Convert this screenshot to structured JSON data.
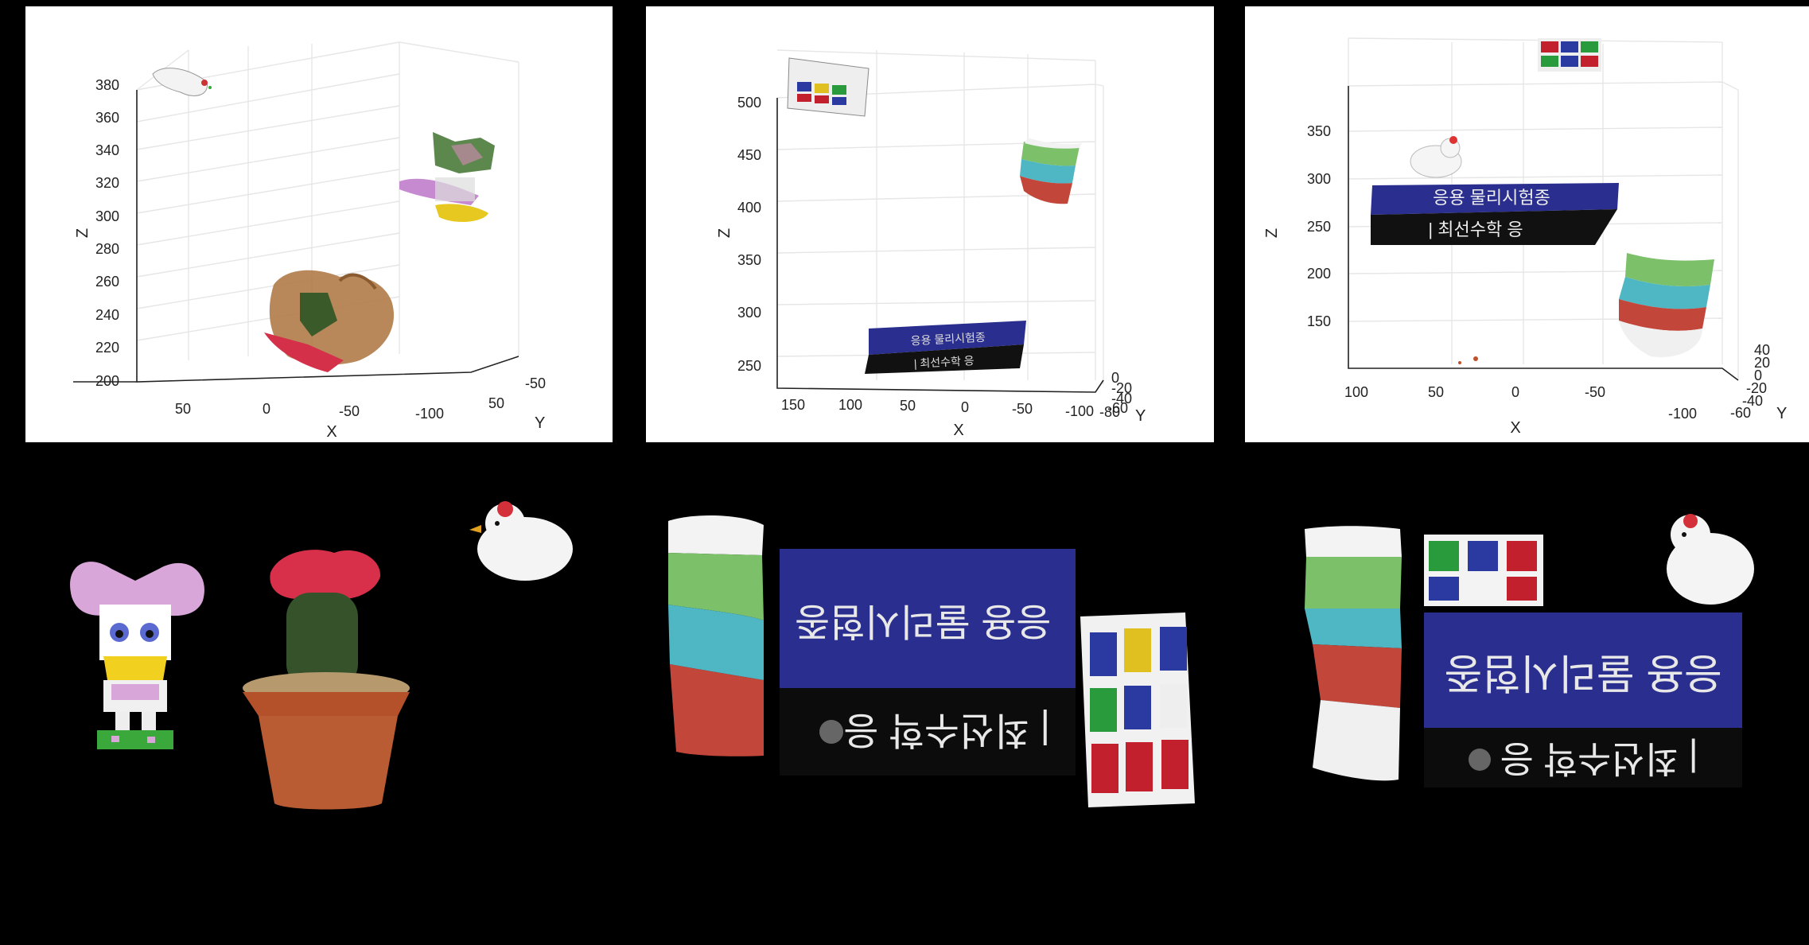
{
  "plots": [
    {
      "id": "a",
      "xlabel": "X",
      "ylabel": "Y",
      "zlabel": "Z",
      "zticks": [
        "380",
        "360",
        "340",
        "320",
        "300",
        "280",
        "260",
        "240",
        "220",
        "200"
      ],
      "xticks": [
        "50",
        "0",
        "-50",
        "-100"
      ],
      "yticks": [
        "-50",
        "50"
      ]
    },
    {
      "id": "b",
      "xlabel": "X",
      "ylabel": "Y",
      "zlabel": "Z",
      "zticks": [
        "500",
        "450",
        "400",
        "350",
        "300",
        "250"
      ],
      "xticks": [
        "150",
        "100",
        "50",
        "0",
        "-50",
        "-100"
      ],
      "yticks": [
        "0",
        "-20",
        "-40",
        "-60",
        "-80"
      ]
    },
    {
      "id": "c",
      "xlabel": "X",
      "ylabel": "Y",
      "zlabel": "Z",
      "zticks": [
        "350",
        "300",
        "250",
        "200",
        "150"
      ],
      "xticks": [
        "100",
        "50",
        "0",
        "-50",
        "-100"
      ],
      "yticks": [
        "40",
        "20",
        "0",
        "-20",
        "-40",
        "-60"
      ]
    }
  ],
  "book": {
    "top_spine_text": "응용 물리시험종",
    "bottom_spine_text": "| 최선수학 응"
  },
  "colors": {
    "background": "#000000",
    "book_blue": "#2a2f8f",
    "cup_green": "#7cc06a",
    "cup_cyan": "#4fb7c4",
    "cup_red": "#c2473a",
    "cube_red": "#c2202c",
    "cube_green": "#2a9b3c",
    "cube_blue": "#2b3aa0",
    "cube_yellow": "#e0c020"
  }
}
